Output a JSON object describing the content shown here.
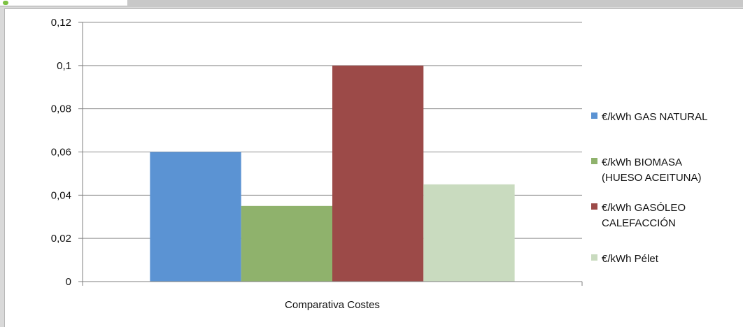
{
  "chart_data": {
    "type": "bar",
    "categories": [
      "Comparativa Costes"
    ],
    "series": [
      {
        "name": "€/kWh  GAS NATURAL",
        "legend_lines": [
          "€/kWh  GAS NATURAL"
        ],
        "values": [
          0.06
        ],
        "color": "#5b93d3"
      },
      {
        "name": "€/kWh  BIOMASA (HUESO ACEITUNA)",
        "legend_lines": [
          "€/kWh  BIOMASA",
          "(HUESO ACEITUNA)"
        ],
        "values": [
          0.035
        ],
        "color": "#8fb26c"
      },
      {
        "name": "€/kWh GASÓLEO CALEFACCIÓN",
        "legend_lines": [
          "€/kWh GASÓLEO",
          "CALEFACCIÓN"
        ],
        "values": [
          0.1
        ],
        "color": "#9c4a48"
      },
      {
        "name": "€/kWh Pélet",
        "legend_lines": [
          "€/kWh Pélet"
        ],
        "values": [
          0.045
        ],
        "color": "#c9dbbf"
      }
    ],
    "ylim": [
      0,
      0.12
    ],
    "yticks": [
      0,
      0.02,
      0.04,
      0.06,
      0.08,
      0.1,
      0.12
    ],
    "ytick_labels": [
      "0",
      "0,02",
      "0,04",
      "0,06",
      "0,08",
      "0,1",
      "0,12"
    ],
    "grid": true,
    "legend_position": "right",
    "title": "",
    "xlabel": "",
    "ylabel": ""
  }
}
